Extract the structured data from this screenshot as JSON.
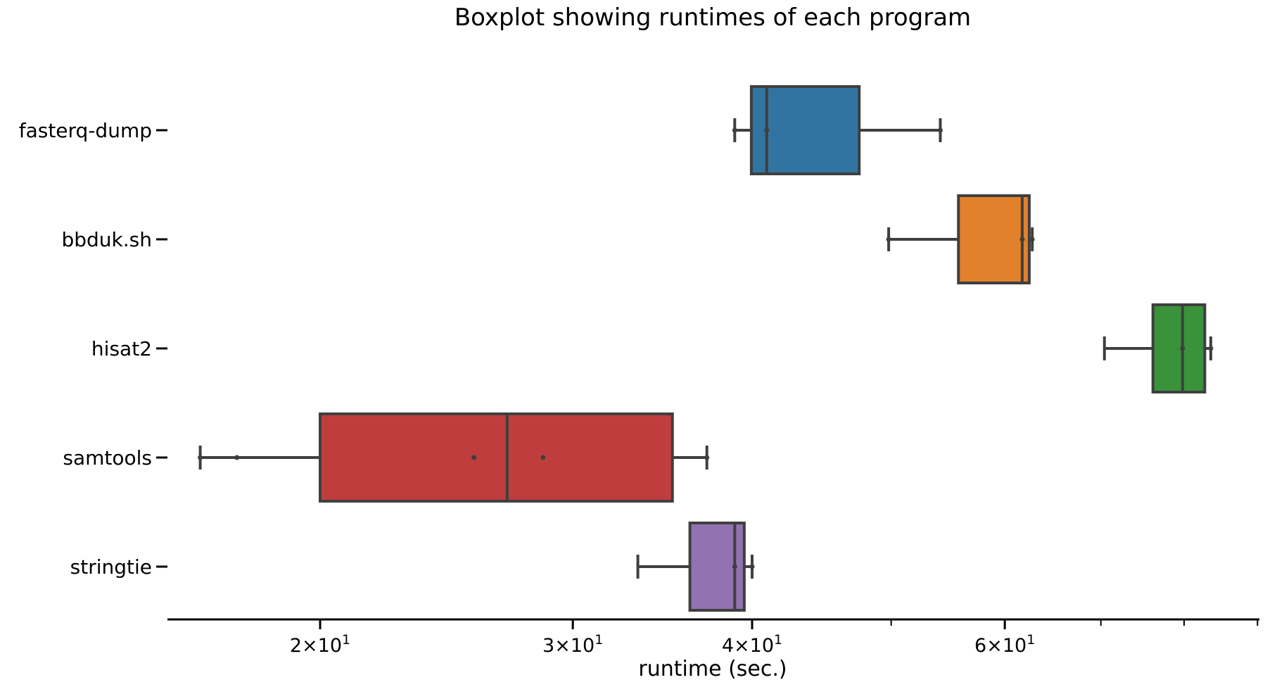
{
  "chart_data": {
    "type": "boxplot",
    "orientation": "horizontal",
    "title": "Boxplot showing runtimes of each program",
    "xlabel": "runtime (sec.)",
    "ylabel": "",
    "xscale": "log",
    "xlim": [
      15.5,
      100
    ],
    "grid": false,
    "x_major_ticks": [
      {
        "value": 20,
        "label_base": "2×10",
        "label_exp": "1"
      },
      {
        "value": 30,
        "label_base": "3×10",
        "label_exp": "1"
      },
      {
        "value": 40,
        "label_base": "4×10",
        "label_exp": "1"
      },
      {
        "value": 60,
        "label_base": "6×10",
        "label_exp": "1"
      }
    ],
    "x_minor_ticks": [
      50,
      70,
      80,
      90,
      100
    ],
    "series": [
      {
        "category": "fasterq-dump",
        "color": "#3274a1",
        "whisker_low": 38.9,
        "q1": 39.95,
        "median": 40.95,
        "q3": 47.5,
        "whisker_high": 54.1,
        "points": [
          38.9,
          40.95,
          54.1
        ]
      },
      {
        "category": "bbduk.sh",
        "color": "#e1812c",
        "whisker_low": 49.8,
        "q1": 55.7,
        "median": 61.7,
        "q3": 62.4,
        "whisker_high": 62.7,
        "points": [
          49.8,
          61.7,
          62.7
        ]
      },
      {
        "category": "hisat2",
        "color": "#3a923a",
        "whisker_low": 70.4,
        "q1": 76.1,
        "median": 79.8,
        "q3": 82.7,
        "whisker_high": 83.5,
        "points": [
          79.8,
          83.5
        ]
      },
      {
        "category": "samtools",
        "color": "#c03d3e",
        "whisker_low": 16.5,
        "q1": 20.0,
        "median": 27.0,
        "q3": 35.2,
        "whisker_high": 37.2,
        "points": [
          16.5,
          17.5,
          25.6,
          28.6,
          37.2
        ]
      },
      {
        "category": "stringtie",
        "color": "#9372b2",
        "whisker_low": 33.3,
        "q1": 36.2,
        "median": 38.9,
        "q3": 39.5,
        "whisker_high": 40.0,
        "points": [
          38.9,
          40.0
        ]
      }
    ]
  }
}
